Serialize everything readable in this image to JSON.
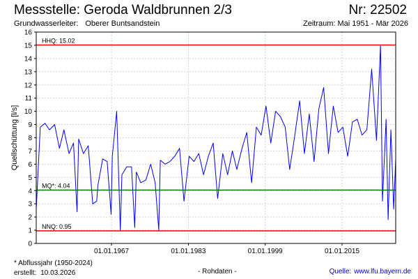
{
  "header": {
    "title": "Messstelle: Geroda Waldbrunnen 2/3",
    "number": "Nr: 22502",
    "aquifer_label": "Grundwasserleiter:",
    "aquifer_value": "Oberer Buntsandstein",
    "period": "Zeitraum: Mai 1951 - Mär 2026"
  },
  "footer": {
    "note": "* Abflussjahr (1950-2024)",
    "created_label": "erstellt:",
    "created_value": "10.03.2026",
    "raw": "- Rohdaten -",
    "source_label": "Quelle:",
    "source_value": "www.lfu.bayern.de"
  },
  "colors": {
    "series": "#0000ff",
    "extreme_lines": "#ff0000",
    "mean_line": "#008000",
    "grid": "#c8c8c8"
  },
  "chart_data": {
    "type": "line",
    "title": "",
    "ylabel": "Quellschüttung [l/s]",
    "xlabel": "",
    "ylim": [
      0,
      16
    ],
    "yticks": [
      0,
      1,
      2,
      3,
      4,
      5,
      6,
      7,
      8,
      9,
      10,
      11,
      12,
      13,
      14,
      15,
      16
    ],
    "xlim": [
      "1951-05-01",
      "2026-03-01"
    ],
    "xticks": [
      {
        "date": "1967-01-01",
        "label": "01.01.1967"
      },
      {
        "date": "1983-01-01",
        "label": "01.01.1983"
      },
      {
        "date": "1999-01-01",
        "label": "01.01.1999"
      },
      {
        "date": "2015-01-01",
        "label": "01.01.2015"
      }
    ],
    "grid": true,
    "reference_lines": [
      {
        "label": "HHQ: 15.02",
        "value": 15.02,
        "color": "#ff0000"
      },
      {
        "label": "MQ*: 4.04",
        "value": 4.04,
        "color": "#008000"
      },
      {
        "label": "NNQ: 0.95",
        "value": 0.95,
        "color": "#ff0000"
      }
    ],
    "series": [
      {
        "name": "",
        "color": "#0000ff",
        "x": [
          "1951-05",
          "1952-03",
          "1953-03",
          "1954-02",
          "1955-03",
          "1956-03",
          "1957-02",
          "1958-03",
          "1959-02",
          "1959-11",
          "1960-03",
          "1961-03",
          "1962-03",
          "1963-02",
          "1963-12",
          "1964-03",
          "1965-03",
          "1966-02",
          "1966-12",
          "1967-03",
          "1968-02",
          "1968-11",
          "1969-03",
          "1970-03",
          "1971-03",
          "1971-11",
          "1972-03",
          "1973-02",
          "1974-03",
          "1975-03",
          "1976-02",
          "1976-11",
          "1977-03",
          "1978-03",
          "1979-03",
          "1980-03",
          "1981-03",
          "1982-02",
          "1983-03",
          "1984-03",
          "1985-03",
          "1986-03",
          "1987-03",
          "1988-03",
          "1989-02",
          "1990-03",
          "1991-03",
          "1992-03",
          "1993-02",
          "1994-03",
          "1995-03",
          "1996-03",
          "1997-03",
          "1998-03",
          "1999-03",
          "2000-03",
          "2001-03",
          "2002-03",
          "2003-03",
          "2004-02",
          "2005-03",
          "2006-03",
          "2007-03",
          "2008-03",
          "2009-03",
          "2010-03",
          "2011-03",
          "2012-03",
          "2013-03",
          "2014-03",
          "2015-03",
          "2016-03",
          "2017-03",
          "2018-03",
          "2019-03",
          "2020-03",
          "2021-03",
          "2022-03",
          "2023-01",
          "2023-06",
          "2024-03",
          "2024-08",
          "2025-03",
          "2025-10",
          "2026-03"
        ],
        "y": [
          2.6,
          8.8,
          9.1,
          8.6,
          9.0,
          7.2,
          8.6,
          6.8,
          7.6,
          2.4,
          7.9,
          6.8,
          7.4,
          3.0,
          3.2,
          4.4,
          6.4,
          6.2,
          2.2,
          6.6,
          10.0,
          1.0,
          5.2,
          5.8,
          5.8,
          1.2,
          5.4,
          4.6,
          4.8,
          6.0,
          4.6,
          1.0,
          6.3,
          6.0,
          6.2,
          6.6,
          7.2,
          3.2,
          6.6,
          6.2,
          6.8,
          5.2,
          6.6,
          7.6,
          3.4,
          6.8,
          5.2,
          7.0,
          5.6,
          7.2,
          8.4,
          4.6,
          8.8,
          8.2,
          10.4,
          7.6,
          10.0,
          9.6,
          8.8,
          5.6,
          8.2,
          10.8,
          6.8,
          9.8,
          6.2,
          10.2,
          11.8,
          6.8,
          10.4,
          8.4,
          8.8,
          6.6,
          9.2,
          9.4,
          8.2,
          8.6,
          13.2,
          7.8,
          15.02,
          3.2,
          9.4,
          1.8,
          8.6,
          2.6,
          6.4
        ]
      }
    ]
  }
}
